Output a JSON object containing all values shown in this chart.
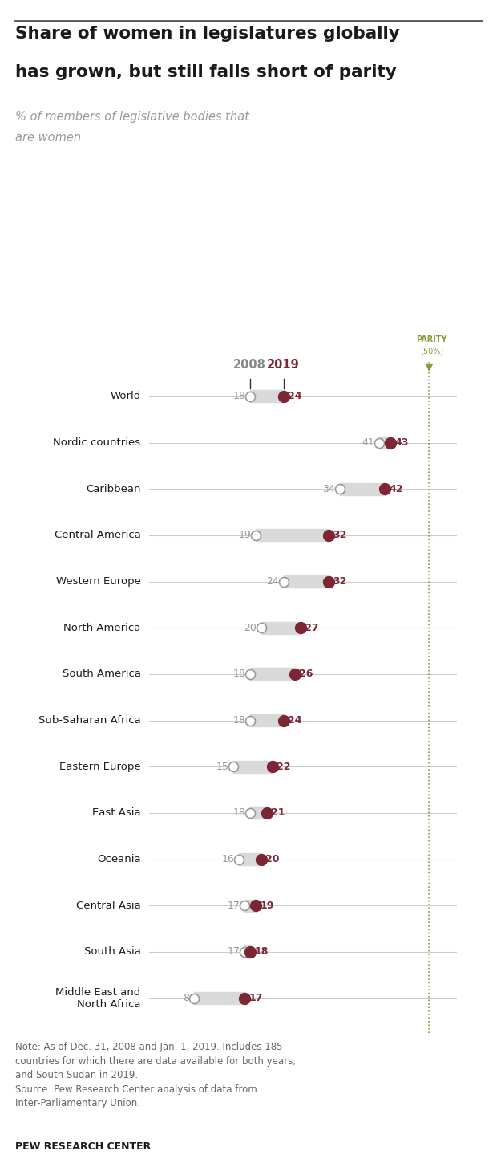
{
  "title_line1": "Share of women in legislatures globally",
  "title_line2": "has grown, but still falls short of parity",
  "subtitle_line1": "% of members of legislative bodies that",
  "subtitle_line2": "are women",
  "categories": [
    "World",
    "Nordic countries",
    "Caribbean",
    "Central America",
    "Western Europe",
    "North America",
    "South America",
    "Sub-Saharan Africa",
    "Eastern Europe",
    "East Asia",
    "Oceania",
    "Central Asia",
    "South Asia",
    "Middle East and\nNorth Africa"
  ],
  "val_2008": [
    18,
    41,
    34,
    19,
    24,
    20,
    18,
    18,
    15,
    18,
    16,
    17,
    17,
    8
  ],
  "val_2019": [
    24,
    43,
    42,
    32,
    32,
    27,
    26,
    24,
    22,
    21,
    20,
    19,
    18,
    17
  ],
  "parity": 50,
  "dot_color_2008": "#ffffff",
  "dot_color_2019": "#7b2535",
  "dot_edge_color_2008": "#999999",
  "dot_edge_color_2019": "#7b2535",
  "bar_color": "#d9d9d9",
  "line_color": "#cccccc",
  "parity_line_color": "#8a9a3a",
  "parity_label_color": "#8a9a3a",
  "header_2008_color": "#888888",
  "header_2019_color": "#7b2535",
  "label_2008_color": "#999999",
  "label_2019_color": "#7b2535",
  "title_color": "#1a1a1a",
  "subtitle_color": "#999999",
  "note_text": "Note: As of Dec. 31, 2008 and Jan. 1, 2019. Includes 185\ncountries for which there are data available for both years,\nand South Sudan in 2019.\nSource: Pew Research Center analysis of data from\nInter-Parliamentary Union.",
  "footer_text": "PEW RESEARCH CENTER",
  "background_color": "#ffffff",
  "xmin": 0,
  "xmax": 55,
  "dot_size_2008": 75,
  "dot_size_2019": 100,
  "bar_height": 0.13
}
